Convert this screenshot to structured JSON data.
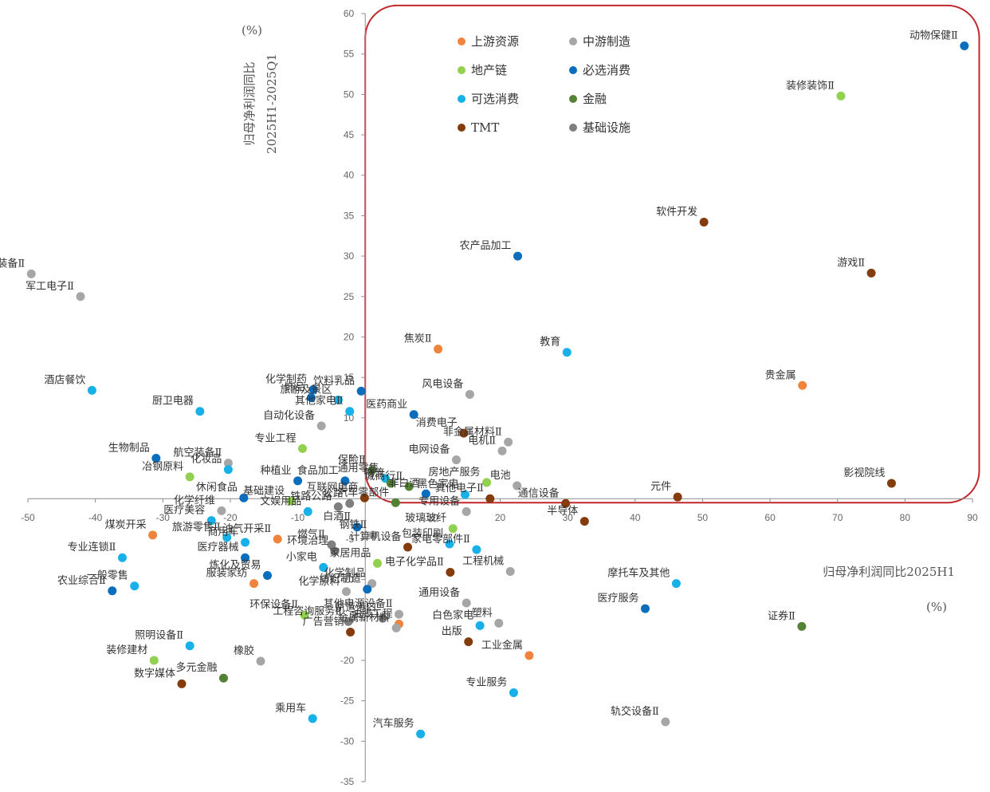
{
  "chart_data": {
    "type": "scatter",
    "xlabel": "归母净利润同比2025H1",
    "xunit": "(%)",
    "ylabel_line1": "归母净利润同比",
    "ylabel_line2": "2025H1-2025Q1",
    "yunit": "(%)",
    "xlim": [
      -50,
      90
    ],
    "ylim": [
      -35,
      60
    ],
    "xticks": [
      -50,
      -40,
      -30,
      -20,
      -10,
      0,
      10,
      20,
      30,
      40,
      50,
      60,
      70,
      80,
      90
    ],
    "yticks": [
      -35,
      -30,
      -25,
      -20,
      -15,
      -10,
      -5,
      0,
      5,
      10,
      15,
      20,
      25,
      30,
      35,
      40,
      45,
      50,
      55,
      60
    ],
    "highlight_box": {
      "x": [
        0,
        91
      ],
      "y": [
        -0.5,
        61
      ],
      "color": "#c0282d"
    },
    "categories": [
      {
        "key": "up",
        "name": "上游资源",
        "color": "#f0843c"
      },
      {
        "key": "mid",
        "name": "中游制造",
        "color": "#a6a6a6"
      },
      {
        "key": "re",
        "name": "地产链",
        "color": "#92d050"
      },
      {
        "key": "nec",
        "name": "必选消费",
        "color": "#0a6ebd"
      },
      {
        "key": "opt",
        "name": "可选消费",
        "color": "#17b0e8"
      },
      {
        "key": "fin",
        "name": "金融",
        "color": "#548235"
      },
      {
        "key": "tmt",
        "name": "TMT",
        "color": "#843c0c"
      },
      {
        "key": "infra",
        "name": "基础设施",
        "color": "#7f7f7f"
      }
    ],
    "points": [
      {
        "name": "动物保健Ⅱ",
        "cat": "nec",
        "x": 88.8,
        "y": 56
      },
      {
        "name": "装修装饰Ⅱ",
        "cat": "re",
        "x": 70.5,
        "y": 49.8
      },
      {
        "name": "软件开发",
        "cat": "tmt",
        "x": 50.2,
        "y": 34.2
      },
      {
        "name": "游戏Ⅱ",
        "cat": "tmt",
        "x": 75,
        "y": 27.9
      },
      {
        "name": "农产品加工",
        "cat": "nec",
        "x": 22.6,
        "y": 30
      },
      {
        "name": "焦炭Ⅱ",
        "cat": "up",
        "x": 10.8,
        "y": 18.5
      },
      {
        "name": "教育",
        "cat": "opt",
        "x": 29.9,
        "y": 18.1
      },
      {
        "name": "贵金属",
        "cat": "up",
        "x": 64.8,
        "y": 14
      },
      {
        "name": "风电设备",
        "cat": "mid",
        "x": 15.5,
        "y": 12.9
      },
      {
        "name": "消费电子",
        "cat": "tmt",
        "x": 14.6,
        "y": 8.1
      },
      {
        "name": "非金属材料Ⅱ",
        "cat": "mid",
        "x": 21.2,
        "y": 7
      },
      {
        "name": "电网设备",
        "cat": "mid",
        "x": 13.5,
        "y": 4.8
      },
      {
        "name": "电机Ⅱ",
        "cat": "mid",
        "x": 20.3,
        "y": 5.9
      },
      {
        "name": "影视院线",
        "cat": "tmt",
        "x": 78,
        "y": 1.9
      },
      {
        "name": "元件",
        "cat": "tmt",
        "x": 46.3,
        "y": 0.2
      },
      {
        "name": "通信设备",
        "cat": "tmt",
        "x": 29.7,
        "y": -0.6
      },
      {
        "name": "半导体",
        "cat": "tmt",
        "x": 32.5,
        "y": -2.8
      },
      {
        "name": "房地产服务",
        "cat": "re",
        "x": 18,
        "y": 2
      },
      {
        "name": "电池",
        "cat": "mid",
        "x": 22.5,
        "y": 1.6
      },
      {
        "name": "非白酒",
        "cat": "nec",
        "x": 9,
        "y": 0.6
      },
      {
        "name": "黑色家电",
        "cat": "opt",
        "x": 14.8,
        "y": 0.5
      },
      {
        "name": "其他电子Ⅱ",
        "cat": "tmt",
        "x": 18.5,
        "y": 0
      },
      {
        "name": "专用设备",
        "cat": "mid",
        "x": 15,
        "y": -1.6
      },
      {
        "name": "玻璃玻纤",
        "cat": "re",
        "x": 13,
        "y": -3.7
      },
      {
        "name": "家电零部件Ⅱ",
        "cat": "opt",
        "x": 16.5,
        "y": -6.3
      },
      {
        "name": "包装印刷",
        "cat": "opt",
        "x": 12.5,
        "y": -5.6
      },
      {
        "name": "计算机设备",
        "cat": "tmt",
        "x": 6.3,
        "y": -6
      },
      {
        "name": "工程机械",
        "cat": "mid",
        "x": 21.5,
        "y": -9
      },
      {
        "name": "电子化学品Ⅱ",
        "cat": "tmt",
        "x": 12.6,
        "y": -9.1
      },
      {
        "name": "摩托车及其他",
        "cat": "opt",
        "x": 46.1,
        "y": -10.5
      },
      {
        "name": "医疗服务",
        "cat": "nec",
        "x": 41.5,
        "y": -13.6
      },
      {
        "name": "证券Ⅱ",
        "cat": "fin",
        "x": 64.7,
        "y": -15.8
      },
      {
        "name": "通用设备",
        "cat": "mid",
        "x": 15,
        "y": -12.9
      },
      {
        "name": "塑料",
        "cat": "mid",
        "x": 19.8,
        "y": -15.4
      },
      {
        "name": "白色家电",
        "cat": "opt",
        "x": 17,
        "y": -15.7
      },
      {
        "name": "油服工程",
        "cat": "up",
        "x": 5,
        "y": -15.5
      },
      {
        "name": "出版",
        "cat": "tmt",
        "x": 15.3,
        "y": -17.7
      },
      {
        "name": "工业金属",
        "cat": "up",
        "x": 24.3,
        "y": -19.4
      },
      {
        "name": "专业服务",
        "cat": "opt",
        "x": 22,
        "y": -24
      },
      {
        "name": "汽车服务",
        "cat": "opt",
        "x": 8.2,
        "y": -29.1
      },
      {
        "name": "轨交设备Ⅱ",
        "cat": "mid",
        "x": 44.5,
        "y": -27.6
      },
      {
        "name": "其他电源设备Ⅱ",
        "cat": "mid",
        "x": 5,
        "y": -14.3
      },
      {
        "name": "航运港口",
        "cat": "infra",
        "x": 2.6,
        "y": -14.8
      },
      {
        "name": "金属新材料",
        "cat": "mid",
        "x": 4.6,
        "y": -16
      },
      {
        "name": "家居用品",
        "cat": "re",
        "x": 1.8,
        "y": -8
      },
      {
        "name": "化学制品",
        "cat": "mid",
        "x": 1,
        "y": -10.5
      },
      {
        "name": "纺织制造",
        "cat": "nec",
        "x": 0.3,
        "y": -11.2
      },
      {
        "name": "钢铁Ⅱ",
        "cat": "mid",
        "x": 1.2,
        "y": -4.5
      },
      {
        "name": "白酒Ⅱ",
        "cat": "nec",
        "x": -1.2,
        "y": -3.5
      },
      {
        "name": "汽车零部件",
        "cat": "fin",
        "x": 4.5,
        "y": -0.5
      },
      {
        "name": "休闲食品",
        "cat": "nec",
        "x": -18,
        "y": 0.1
      },
      {
        "name": "食品加工",
        "cat": "nec",
        "x": -3,
        "y": 2.2
      },
      {
        "name": "通用零售",
        "cat": "opt",
        "x": 3,
        "y": 2.5
      },
      {
        "name": "物流",
        "cat": "fin",
        "x": 3.8,
        "y": 1.9
      },
      {
        "name": "城商行Ⅱ",
        "cat": "fin",
        "x": 6.5,
        "y": 1.5
      },
      {
        "name": "保险Ⅱ",
        "cat": "fin",
        "x": 1,
        "y": 3.5
      },
      {
        "name": "互联网电商",
        "cat": "tmt",
        "x": -0.1,
        "y": 0.1
      },
      {
        "name": "公路",
        "cat": "infra",
        "x": -2.3,
        "y": -0.6
      },
      {
        "name": "铁路公路",
        "cat": "infra",
        "x": -4,
        "y": -1
      },
      {
        "name": "基础建设",
        "cat": "re",
        "x": -11,
        "y": -0.3
      },
      {
        "name": "文娱用品",
        "cat": "opt",
        "x": -8.5,
        "y": -1.6
      },
      {
        "name": "燃气Ⅱ",
        "cat": "infra",
        "x": -5,
        "y": -5.7
      },
      {
        "name": "油气开采Ⅱ",
        "cat": "up",
        "x": -13,
        "y": -5
      },
      {
        "name": "小家电",
        "cat": "opt",
        "x": -6.2,
        "y": -8.5
      },
      {
        "name": "环境治理",
        "cat": "infra",
        "x": -4.5,
        "y": -6.5
      },
      {
        "name": "服装家纺",
        "cat": "up",
        "x": -16.5,
        "y": -10.5
      },
      {
        "name": "化学原料",
        "cat": "mid",
        "x": -2.8,
        "y": -11.5
      },
      {
        "name": "环保设备Ⅱ",
        "cat": "re",
        "x": -9,
        "y": -14.4
      },
      {
        "name": "工程咨询服务Ⅱ",
        "cat": "infra",
        "x": -2.5,
        "y": -15.2
      },
      {
        "name": "广告营销",
        "cat": "tmt",
        "x": -2.2,
        "y": -16.5
      },
      {
        "name": "化学制药",
        "cat": "nec",
        "x": -7.7,
        "y": 13.5
      },
      {
        "name": "饰品",
        "cat": "nec",
        "x": -8,
        "y": 12.5
      },
      {
        "name": "旅游及景区",
        "cat": "opt",
        "x": -4,
        "y": 12.2
      },
      {
        "name": "饮料乳品",
        "cat": "nec",
        "x": -0.6,
        "y": 13.3
      },
      {
        "name": "其他家电Ⅱ",
        "cat": "opt",
        "x": -2.3,
        "y": 10.8
      },
      {
        "name": "医药商业",
        "cat": "nec",
        "x": 7.2,
        "y": 10.4
      },
      {
        "name": "自动化设备",
        "cat": "mid",
        "x": -6.5,
        "y": 9
      },
      {
        "name": "专业工程",
        "cat": "re",
        "x": -9.3,
        "y": 6.2
      },
      {
        "name": "种植业",
        "cat": "nec",
        "x": -10,
        "y": 2.2
      },
      {
        "name": "航空装备Ⅱ",
        "cat": "mid",
        "x": -20.3,
        "y": 4.4
      },
      {
        "name": "化妆品",
        "cat": "opt",
        "x": -20.3,
        "y": 3.6
      },
      {
        "name": "冶钢原料",
        "cat": "re",
        "x": -26,
        "y": 2.7
      },
      {
        "name": "生物制品",
        "cat": "nec",
        "x": -31,
        "y": 5
      },
      {
        "name": "厨卫电器",
        "cat": "opt",
        "x": -24.5,
        "y": 10.8
      },
      {
        "name": "酒店餐饮",
        "cat": "opt",
        "x": -40.5,
        "y": 13.4
      },
      {
        "name": "航天装备Ⅱ",
        "cat": "mid",
        "x": -49.5,
        "y": 27.8
      },
      {
        "name": "军工电子Ⅱ",
        "cat": "mid",
        "x": -42.2,
        "y": 25
      },
      {
        "name": "化学纤维",
        "cat": "mid",
        "x": -21.3,
        "y": -1.5
      },
      {
        "name": "医疗美容",
        "cat": "opt",
        "x": -22.8,
        "y": -2.7
      },
      {
        "name": "商用车",
        "cat": "opt",
        "x": -17.8,
        "y": -5.4
      },
      {
        "name": "旅游零售Ⅱ",
        "cat": "opt",
        "x": -20.5,
        "y": -4.8
      },
      {
        "name": "煤炭开采",
        "cat": "up",
        "x": -31.5,
        "y": -4.5
      },
      {
        "name": "专业连锁Ⅱ",
        "cat": "opt",
        "x": -36,
        "y": -7.3
      },
      {
        "name": "医疗器械",
        "cat": "nec",
        "x": -17.8,
        "y": -7.3
      },
      {
        "name": "一般零售",
        "cat": "opt",
        "x": -34.2,
        "y": -10.8
      },
      {
        "name": "炼化及贸易",
        "cat": "nec",
        "x": -14.5,
        "y": -9.5
      },
      {
        "name": "农业综合Ⅱ",
        "cat": "nec",
        "x": -37.5,
        "y": -11.4
      },
      {
        "name": "照明设备Ⅱ",
        "cat": "opt",
        "x": -26,
        "y": -18.2
      },
      {
        "name": "装修建材",
        "cat": "re",
        "x": -31.3,
        "y": -20
      },
      {
        "name": "橡胶",
        "cat": "mid",
        "x": -15.5,
        "y": -20.1
      },
      {
        "name": "多元金融",
        "cat": "fin",
        "x": -21,
        "y": -22.2
      },
      {
        "name": "数字媒体",
        "cat": "tmt",
        "x": -27.2,
        "y": -22.9
      },
      {
        "name": "乘用车",
        "cat": "opt",
        "x": -7.8,
        "y": -27.2
      }
    ]
  }
}
